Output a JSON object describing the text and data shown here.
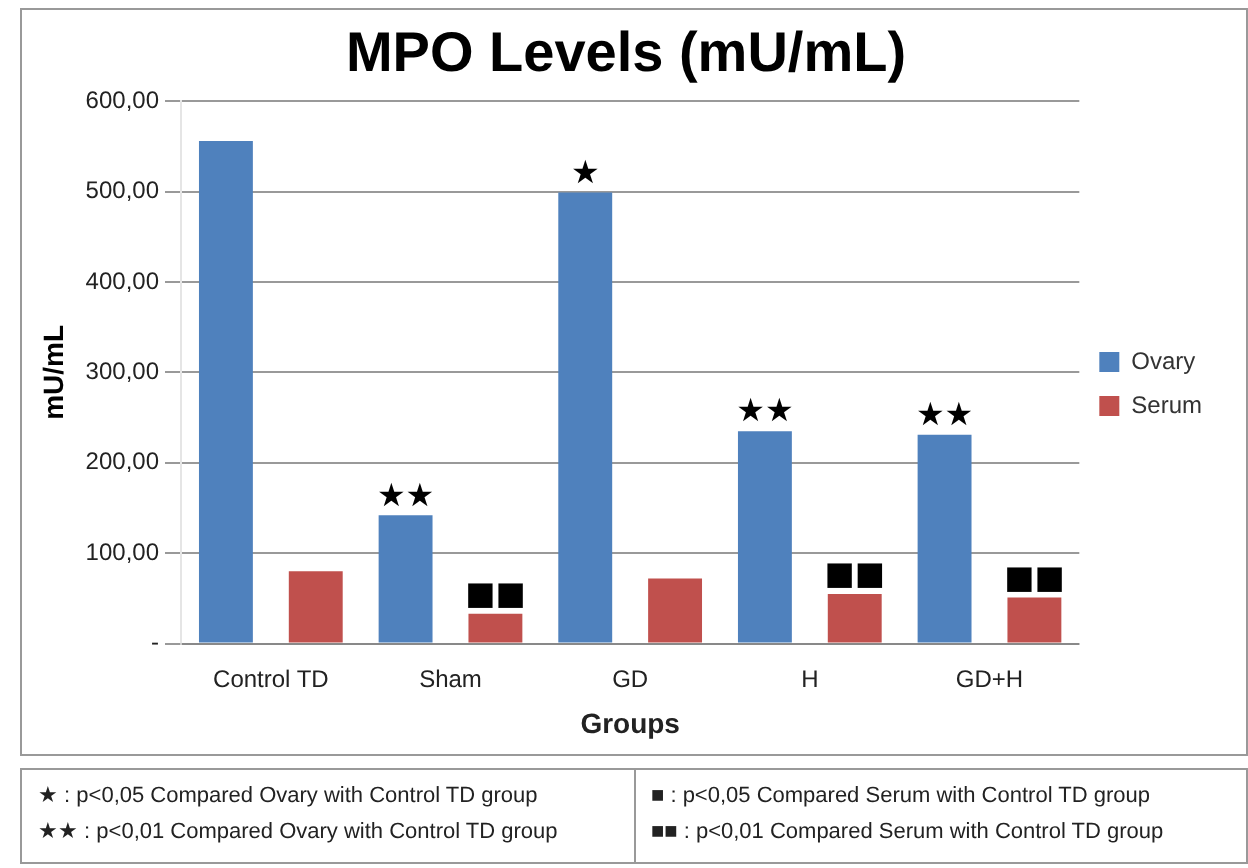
{
  "chart_data": {
    "type": "bar",
    "title": "MPO Levels (mU/mL)",
    "xlabel": "Groups",
    "ylabel": "mU/mL",
    "categories": [
      "Control TD",
      "Sham",
      "GD",
      "H",
      "GD+H"
    ],
    "series": [
      {
        "name": "Ovary",
        "color": "#4f81bd",
        "values": [
          556,
          142,
          499,
          235,
          231
        ],
        "value_labels": [
          null,
          "★★",
          "★",
          "★★",
          "★★"
        ]
      },
      {
        "name": "Serum",
        "color": "#c0504d",
        "values": [
          80,
          33,
          72,
          55,
          51
        ],
        "value_labels": [
          null,
          "■■",
          null,
          "■■",
          "■■"
        ]
      }
    ],
    "ylim": [
      0,
      600
    ],
    "yticks": [
      {
        "value": 0,
        "label": "-"
      },
      {
        "value": 100,
        "label": "100,00"
      },
      {
        "value": 200,
        "label": "200,00"
      },
      {
        "value": 300,
        "label": "300,00"
      },
      {
        "value": 400,
        "label": "400,00"
      },
      {
        "value": 500,
        "label": "500,00"
      },
      {
        "value": 600,
        "label": "600,00"
      }
    ],
    "grid": "y",
    "legend": "right",
    "annotations": [
      "★ : p<0,05 Compared Ovary with Control  TD group",
      "★★ : p<0,01 Compared Ovary with Control  TD group",
      "■ : p<0,05 Compared Serum  with Control  TD group",
      "■■ : p<0,01 Compared Serum  with Control  TD group"
    ]
  }
}
